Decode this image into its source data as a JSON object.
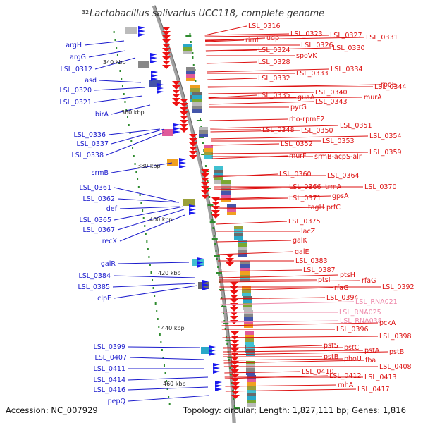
{
  "title": "Lactobacillus salivarius UCC118, complete genome",
  "accession": "Accession: NC_007929",
  "summary": "Topology: circular; Length: 1,827,111 bp; Genes: 1,816",
  "colors": {
    "left_label": "#1a1acc",
    "right_label": "#dd1111",
    "rna_label": "#ee88aa",
    "forward_strand": "#1a1aee",
    "reverse_strand": "#ee1111",
    "backbone": "#a0a0a0",
    "tick": "#2e8b2e"
  },
  "kbp_marks": [
    {
      "label": "32"
    },
    {
      "label": "340 kbp"
    },
    {
      "label": "360 kbp"
    },
    {
      "label": "380 kbp"
    },
    {
      "label": "400 kbp"
    },
    {
      "label": "420 kbp"
    },
    {
      "label": "440 kbp"
    },
    {
      "label": "460 kbp"
    }
  ],
  "left_labels": [
    "argH",
    "argG",
    "LSL_0312",
    "asd",
    "LSL_0320",
    "LSL_0321",
    "birA",
    "LSL_0336",
    "LSL_0337",
    "LSL_0338",
    "srmB",
    "LSL_0361",
    "LSL_0362",
    "def",
    "LSL_0365",
    "LSL_0367",
    "recX",
    "galR",
    "LSL_0384",
    "LSL_0385",
    "clpE",
    "LSL_0399",
    "LSL_0407",
    "LSL_0411",
    "LSL_0414",
    "LSL_0416",
    "pepQ"
  ],
  "right_labels": [
    {
      "text": "LSL_0316",
      "kind": "gene"
    },
    {
      "text": "rimL",
      "kind": "gene"
    },
    {
      "text": "udp",
      "kind": "gene"
    },
    {
      "text": "LSL_0323",
      "kind": "gene"
    },
    {
      "text": "LSL_0327",
      "kind": "gene"
    },
    {
      "text": "LSL_0331",
      "kind": "gene"
    },
    {
      "text": "LSL_0326",
      "kind": "gene"
    },
    {
      "text": "LSL_0324",
      "kind": "gene"
    },
    {
      "text": "LSL_0330",
      "kind": "gene"
    },
    {
      "text": "spoVK",
      "kind": "gene"
    },
    {
      "text": "LSL_0328",
      "kind": "gene"
    },
    {
      "text": "LSL_0334",
      "kind": "gene"
    },
    {
      "text": "LSL_0333",
      "kind": "gene"
    },
    {
      "text": "LSL_0332",
      "kind": "gene"
    },
    {
      "text": "rpoE",
      "kind": "gene"
    },
    {
      "text": "LSL_0344",
      "kind": "gene"
    },
    {
      "text": "LSL_0340",
      "kind": "gene"
    },
    {
      "text": "LSL_0335",
      "kind": "gene"
    },
    {
      "text": "guaA",
      "kind": "gene"
    },
    {
      "text": "murA",
      "kind": "gene"
    },
    {
      "text": "LSL_0343",
      "kind": "gene"
    },
    {
      "text": "pyrG",
      "kind": "gene"
    },
    {
      "text": "rho-rpmE2",
      "kind": "gene"
    },
    {
      "text": "LSL_0351",
      "kind": "gene"
    },
    {
      "text": "LSL_0348",
      "kind": "gene"
    },
    {
      "text": "LSL_0350",
      "kind": "gene"
    },
    {
      "text": "LSL_0354",
      "kind": "gene"
    },
    {
      "text": "LSL_0353",
      "kind": "gene"
    },
    {
      "text": "LSL_0352",
      "kind": "gene"
    },
    {
      "text": "murF",
      "kind": "gene"
    },
    {
      "text": "srmB-acpS-alr",
      "kind": "gene"
    },
    {
      "text": "LSL_0359",
      "kind": "gene"
    },
    {
      "text": "LSL_0360",
      "kind": "gene"
    },
    {
      "text": "LSL_0364",
      "kind": "gene"
    },
    {
      "text": "LSL_0366",
      "kind": "gene"
    },
    {
      "text": "trmA",
      "kind": "gene"
    },
    {
      "text": "LSL_0370",
      "kind": "gene"
    },
    {
      "text": "LSL_0371",
      "kind": "gene"
    },
    {
      "text": "gpsA",
      "kind": "gene"
    },
    {
      "text": "tagH",
      "kind": "gene"
    },
    {
      "text": "prfC",
      "kind": "gene"
    },
    {
      "text": "LSL_0375",
      "kind": "gene"
    },
    {
      "text": "lacZ",
      "kind": "gene"
    },
    {
      "text": "galK",
      "kind": "gene"
    },
    {
      "text": "galE",
      "kind": "gene"
    },
    {
      "text": "LSL_0383",
      "kind": "gene"
    },
    {
      "text": "LSL_0387",
      "kind": "gene"
    },
    {
      "text": "ptsH",
      "kind": "gene"
    },
    {
      "text": "ptsI",
      "kind": "gene"
    },
    {
      "text": "rfaG",
      "kind": "gene"
    },
    {
      "text": "rfaG",
      "kind": "gene"
    },
    {
      "text": "LSL_0392",
      "kind": "gene"
    },
    {
      "text": "LSL_0394",
      "kind": "gene"
    },
    {
      "text": "LSL_RNA021",
      "kind": "rna"
    },
    {
      "text": "LSL_RNA025",
      "kind": "rna"
    },
    {
      "text": "LSL_RNA038",
      "kind": "rna"
    },
    {
      "text": "pckA",
      "kind": "gene"
    },
    {
      "text": "LSL_0396",
      "kind": "gene"
    },
    {
      "text": "LSL_0398",
      "kind": "gene"
    },
    {
      "text": "pstS",
      "kind": "gene"
    },
    {
      "text": "pstC",
      "kind": "gene"
    },
    {
      "text": "pstA",
      "kind": "gene"
    },
    {
      "text": "pstB",
      "kind": "gene"
    },
    {
      "text": "pstB",
      "kind": "gene"
    },
    {
      "text": "phoU",
      "kind": "gene"
    },
    {
      "text": "fba",
      "kind": "gene"
    },
    {
      "text": "LSL_0408",
      "kind": "gene"
    },
    {
      "text": "LSL_0410",
      "kind": "gene"
    },
    {
      "text": "LSL_0412",
      "kind": "gene"
    },
    {
      "text": "LSL_0413",
      "kind": "gene"
    },
    {
      "text": "rnhA",
      "kind": "gene"
    },
    {
      "text": "LSL_0417",
      "kind": "gene"
    }
  ]
}
